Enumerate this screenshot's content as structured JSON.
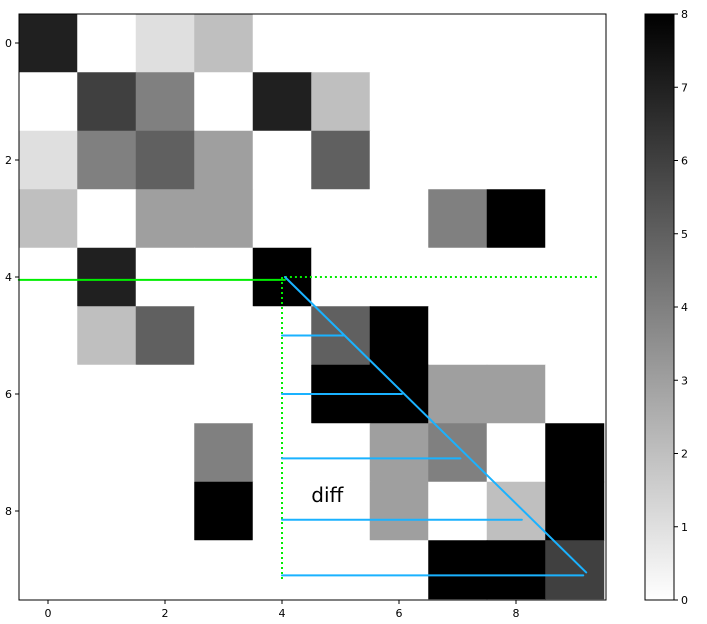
{
  "chart_data": {
    "type": "heatmap",
    "colormap": "gray_r",
    "vmin": 0,
    "vmax": 8,
    "x_ticks": [
      0,
      2,
      4,
      6,
      8
    ],
    "y_ticks": [
      0,
      2,
      4,
      6,
      8
    ],
    "colorbar_ticks": [
      0,
      1,
      2,
      3,
      4,
      5,
      6,
      7,
      8
    ],
    "matrix": [
      [
        7,
        0,
        1,
        2,
        0,
        0,
        0,
        0,
        0,
        0
      ],
      [
        0,
        6,
        4,
        0,
        7,
        2,
        0,
        0,
        0,
        0
      ],
      [
        1,
        4,
        5,
        3,
        0,
        5,
        0,
        0,
        0,
        0
      ],
      [
        2,
        0,
        3,
        3,
        0,
        0,
        0,
        4,
        8,
        0
      ],
      [
        0,
        7,
        0,
        0,
        8,
        0,
        0,
        0,
        0,
        0
      ],
      [
        0,
        2,
        5,
        0,
        0,
        5,
        8,
        0,
        0,
        0
      ],
      [
        0,
        0,
        0,
        0,
        0,
        8,
        8,
        3,
        3,
        0
      ],
      [
        0,
        0,
        0,
        4,
        0,
        0,
        3,
        4,
        0,
        8
      ],
      [
        0,
        0,
        0,
        8,
        0,
        0,
        3,
        0,
        2,
        8
      ],
      [
        0,
        0,
        0,
        0,
        0,
        0,
        0,
        8,
        8,
        6
      ]
    ],
    "overlays": {
      "green_solid_line": {
        "x": [
          -0.5,
          4.05
        ],
        "y": [
          4.05,
          4.05
        ],
        "color": "#00ee00"
      },
      "green_dotted_horizontal": {
        "x": [
          4.05,
          9.4
        ],
        "y": [
          4.0,
          4.0
        ],
        "color": "#00ee00"
      },
      "green_dotted_vertical": {
        "x": [
          4.0,
          4.0
        ],
        "y": [
          4.0,
          9.2
        ],
        "color": "#00ee00"
      },
      "blue_diagonal": {
        "x": [
          4.05,
          9.2
        ],
        "y": [
          4.0,
          9.05
        ],
        "color": "#1ab2ff"
      },
      "blue_horizontals": [
        {
          "x": [
            4.0,
            5.05
          ],
          "y": 5.0
        },
        {
          "x": [
            4.0,
            6.05
          ],
          "y": 6.0
        },
        {
          "x": [
            4.0,
            7.05
          ],
          "y": 7.1
        },
        {
          "x": [
            4.0,
            8.1
          ],
          "y": 8.15
        },
        {
          "x": [
            4.0,
            9.15
          ],
          "y": 9.1
        }
      ],
      "blue_color": "#1ab2ff"
    },
    "annotation": {
      "text": "diff",
      "x": 4.5,
      "y": 7.85
    }
  }
}
